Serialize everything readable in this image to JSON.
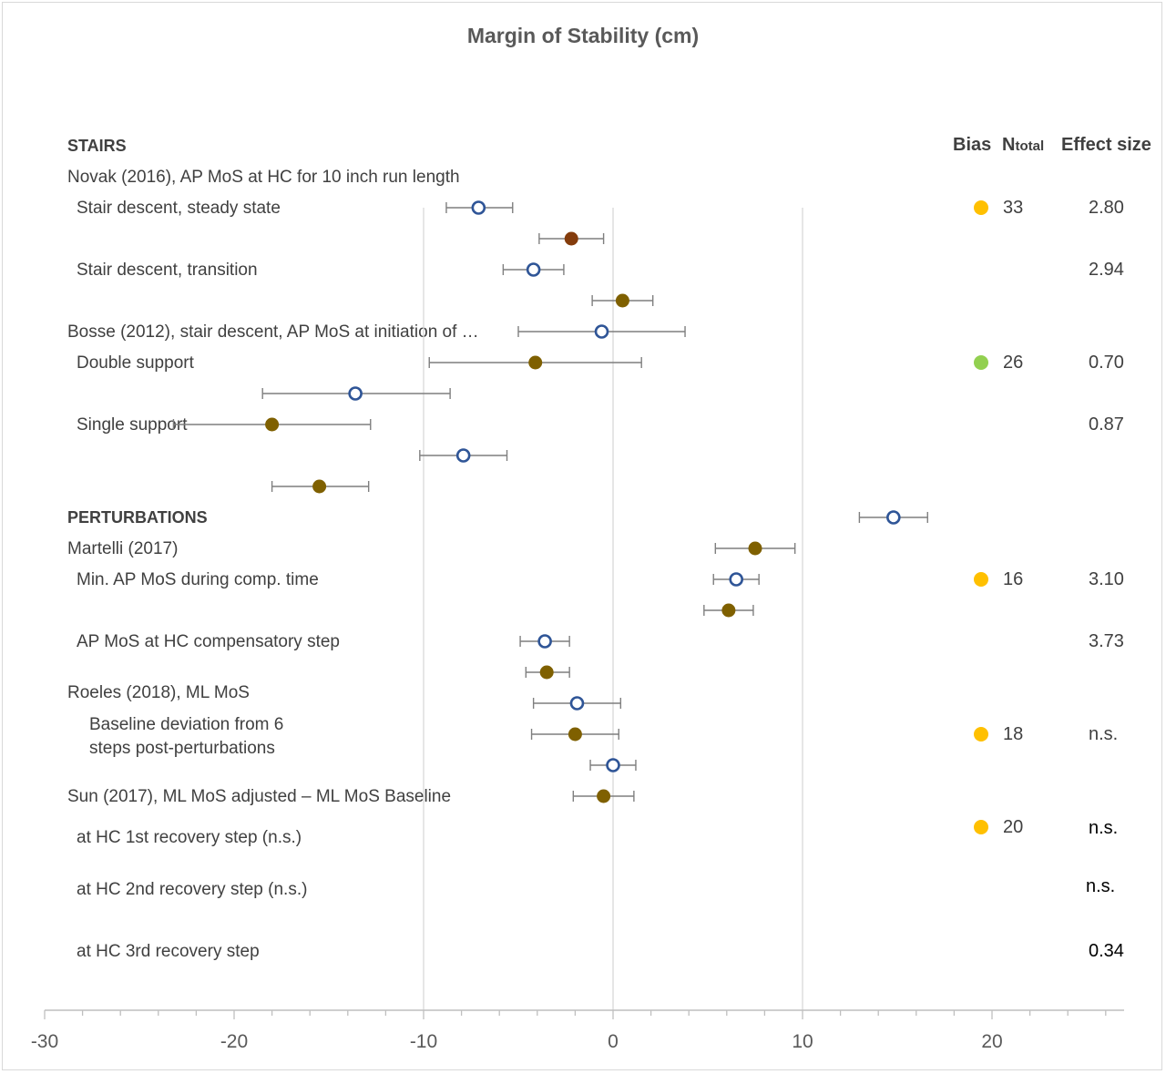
{
  "chart_data": {
    "type": "scatter",
    "title": "Margin of Stability (cm)",
    "xlim": [
      -30,
      27
    ],
    "xticks": [
      -30,
      -20,
      -10,
      0,
      10,
      20
    ],
    "tick_labels": [
      "-30",
      "-20",
      "-10",
      "0",
      "10",
      "20"
    ],
    "grid": "vertical lines at -10, 0, 10",
    "columns": {
      "bias": "Bias",
      "n": "N",
      "n_sub": "total",
      "effect": "Effect size"
    },
    "sections": {
      "stairs": "STAIRS",
      "perturbations": "PERTURBATIONS"
    },
    "bias_colors": {
      "yellow": "#ffc000",
      "green": "#92d050"
    },
    "marker_colors": {
      "open": "#2f5597",
      "filled": "#7f6000",
      "filled_alt": "#843c0c"
    },
    "studies": [
      {
        "label": "Novak (2016), AP MoS at HC for 10 inch run length"
      },
      {
        "label": "Bosse (2012), stair descent, AP MoS at initiation of …"
      },
      {
        "label": "Martelli (2017)"
      },
      {
        "label": "Roeles (2018), ML MoS"
      },
      {
        "label": "Sun (2017), ML MoS adjusted –  ML MoS Baseline"
      }
    ],
    "outcomes": [
      {
        "label": "Stair descent, steady state",
        "bias": "yellow",
        "n": "33",
        "effect": "2.80"
      },
      {
        "label": "Stair descent, transition",
        "effect": "2.94"
      },
      {
        "label": "Double support",
        "bias": "green",
        "n": "26",
        "effect": "0.70"
      },
      {
        "label": "Single support",
        "effect": "0.87"
      },
      {
        "label": "Min. AP MoS during comp. time",
        "bias": "yellow",
        "n": "16",
        "effect": "3.10"
      },
      {
        "label": "AP MoS at HC compensatory step",
        "effect": "3.73"
      },
      {
        "label": "Baseline deviation from 6\nsteps post-perturbations",
        "bias": "yellow",
        "n": "18",
        "effect": "n.s."
      },
      {
        "label": "at HC 1st recovery step (n.s.)",
        "bias": "yellow",
        "n": "20",
        "effect": "n.s."
      },
      {
        "label": "at HC 2nd recovery step (n.s.)",
        "effect": "n.s."
      },
      {
        "label": "at HC 3rd recovery step",
        "effect": "0.34"
      }
    ],
    "points": [
      {
        "mean": -7.1,
        "low": -8.8,
        "high": -5.3,
        "style": "open"
      },
      {
        "mean": -2.2,
        "low": -3.9,
        "high": -0.5,
        "style": "filled_alt"
      },
      {
        "mean": -4.2,
        "low": -5.8,
        "high": -2.6,
        "style": "open"
      },
      {
        "mean": 0.5,
        "low": -1.1,
        "high": 2.1,
        "style": "filled"
      },
      {
        "mean": -0.6,
        "low": -5.0,
        "high": 3.8,
        "style": "open"
      },
      {
        "mean": -4.1,
        "low": -9.7,
        "high": 1.5,
        "style": "filled"
      },
      {
        "mean": -13.6,
        "low": -18.5,
        "high": -8.6,
        "style": "open"
      },
      {
        "mean": -18.0,
        "low": -23.2,
        "high": -12.8,
        "style": "filled"
      },
      {
        "mean": -7.9,
        "low": -10.2,
        "high": -5.6,
        "style": "open"
      },
      {
        "mean": -15.5,
        "low": -18.0,
        "high": -12.9,
        "style": "filled"
      },
      {
        "mean": 14.8,
        "low": 13.0,
        "high": 16.6,
        "style": "open"
      },
      {
        "mean": 7.5,
        "low": 5.4,
        "high": 9.6,
        "style": "filled"
      },
      {
        "mean": 6.5,
        "low": 5.3,
        "high": 7.7,
        "style": "open"
      },
      {
        "mean": 6.1,
        "low": 4.8,
        "high": 7.4,
        "style": "filled"
      },
      {
        "mean": -3.6,
        "low": -4.9,
        "high": -2.3,
        "style": "open"
      },
      {
        "mean": -3.5,
        "low": -4.6,
        "high": -2.3,
        "style": "filled"
      },
      {
        "mean": -1.9,
        "low": -4.2,
        "high": 0.4,
        "style": "open"
      },
      {
        "mean": -2.0,
        "low": -4.3,
        "high": 0.3,
        "style": "filled"
      },
      {
        "mean": 0.0,
        "low": -1.2,
        "high": 1.2,
        "style": "open"
      },
      {
        "mean": -0.5,
        "low": -2.1,
        "high": 1.1,
        "style": "filled"
      }
    ]
  }
}
